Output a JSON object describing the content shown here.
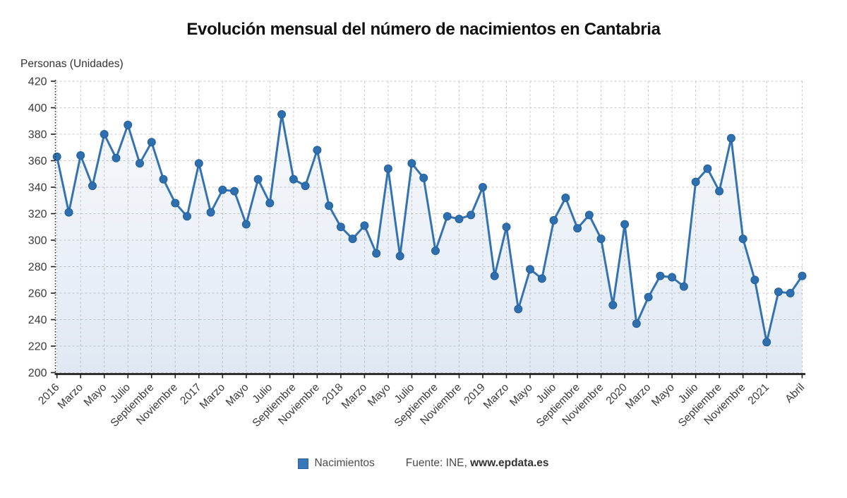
{
  "title": "Evolución mensual del número de nacimientos en Cantabria",
  "ylabel": "Personas (Unidades)",
  "legend": {
    "label": "Nacimientos"
  },
  "source": {
    "prefix": "Fuente: INE,",
    "site": "www.epdata.es"
  },
  "colors": {
    "line": "#3473b2",
    "marker_fill": "#2f6fae",
    "marker_stroke": "#20609f",
    "legend_swatch": "#3878b8",
    "grid": "#c9c9c9",
    "axis": "#1f1f1f",
    "tick_text": "#3a3a3a",
    "area_fill_base": "#7da0cd"
  },
  "chart_data": {
    "type": "line",
    "title": "Evolución mensual del número de nacimientos en Cantabria",
    "xlabel": "",
    "ylabel": "Personas (Unidades)",
    "ylim": [
      200,
      420
    ],
    "ytick_step": 20,
    "grid": true,
    "legend_position": "bottom",
    "x_start": "Enero 2016",
    "x_end": "Abril 2021",
    "categories": [
      "Enero 2016",
      "Febrero 2016",
      "Marzo 2016",
      "Abril 2016",
      "Mayo 2016",
      "Junio 2016",
      "Julio 2016",
      "Agosto 2016",
      "Septiembre 2016",
      "Octubre 2016",
      "Noviembre 2016",
      "Diciembre 2016",
      "Enero 2017",
      "Febrero 2017",
      "Marzo 2017",
      "Abril 2017",
      "Mayo 2017",
      "Junio 2017",
      "Julio 2017",
      "Agosto 2017",
      "Septiembre 2017",
      "Octubre 2017",
      "Noviembre 2017",
      "Diciembre 2017",
      "Enero 2018",
      "Febrero 2018",
      "Marzo 2018",
      "Abril 2018",
      "Mayo 2018",
      "Junio 2018",
      "Julio 2018",
      "Agosto 2018",
      "Septiembre 2018",
      "Octubre 2018",
      "Noviembre 2018",
      "Diciembre 2018",
      "Enero 2019",
      "Febrero 2019",
      "Marzo 2019",
      "Abril 2019",
      "Mayo 2019",
      "Junio 2019",
      "Julio 2019",
      "Agosto 2019",
      "Septiembre 2019",
      "Octubre 2019",
      "Noviembre 2019",
      "Diciembre 2019",
      "Enero 2020",
      "Febrero 2020",
      "Marzo 2020",
      "Abril 2020",
      "Mayo 2020",
      "Junio 2020",
      "Julio 2020",
      "Agosto 2020",
      "Septiembre 2020",
      "Octubre 2020",
      "Noviembre 2020",
      "Diciembre 2020",
      "Enero 2021",
      "Febrero 2021",
      "Marzo 2021",
      "Abril 2021"
    ],
    "series": [
      {
        "name": "Nacimientos",
        "values": [
          363,
          321,
          364,
          341,
          380,
          362,
          387,
          358,
          374,
          346,
          328,
          318,
          358,
          321,
          338,
          337,
          312,
          346,
          328,
          395,
          346,
          341,
          368,
          326,
          310,
          301,
          311,
          290,
          354,
          288,
          358,
          347,
          292,
          318,
          316,
          319,
          340,
          273,
          310,
          248,
          278,
          271,
          315,
          332,
          309,
          319,
          301,
          251,
          312,
          237,
          257,
          273,
          272,
          265,
          344,
          354,
          337,
          377,
          301,
          270,
          223,
          261,
          260,
          273
        ]
      }
    ],
    "tick_labels": [
      {
        "i": 0,
        "label": "2016"
      },
      {
        "i": 2,
        "label": "Marzo"
      },
      {
        "i": 4,
        "label": "Mayo"
      },
      {
        "i": 6,
        "label": "Julio"
      },
      {
        "i": 8,
        "label": "Septiembre"
      },
      {
        "i": 10,
        "label": "Noviembre"
      },
      {
        "i": 12,
        "label": "2017"
      },
      {
        "i": 14,
        "label": "Marzo"
      },
      {
        "i": 16,
        "label": "Mayo"
      },
      {
        "i": 18,
        "label": "Julio"
      },
      {
        "i": 20,
        "label": "Septiembre"
      },
      {
        "i": 22,
        "label": "Noviembre"
      },
      {
        "i": 24,
        "label": "2018"
      },
      {
        "i": 26,
        "label": "Marzo"
      },
      {
        "i": 28,
        "label": "Mayo"
      },
      {
        "i": 30,
        "label": "Julio"
      },
      {
        "i": 32,
        "label": "Septiembre"
      },
      {
        "i": 34,
        "label": "Noviembre"
      },
      {
        "i": 36,
        "label": "2019"
      },
      {
        "i": 38,
        "label": "Marzo"
      },
      {
        "i": 40,
        "label": "Mayo"
      },
      {
        "i": 42,
        "label": "Julio"
      },
      {
        "i": 44,
        "label": "Septiembre"
      },
      {
        "i": 46,
        "label": "Noviembre"
      },
      {
        "i": 48,
        "label": "2020"
      },
      {
        "i": 50,
        "label": "Marzo"
      },
      {
        "i": 52,
        "label": "Mayo"
      },
      {
        "i": 54,
        "label": "Julio"
      },
      {
        "i": 56,
        "label": "Septiembre"
      },
      {
        "i": 58,
        "label": "Noviembre"
      },
      {
        "i": 60,
        "label": "2021"
      },
      {
        "i": 63,
        "label": "Abril"
      }
    ]
  }
}
